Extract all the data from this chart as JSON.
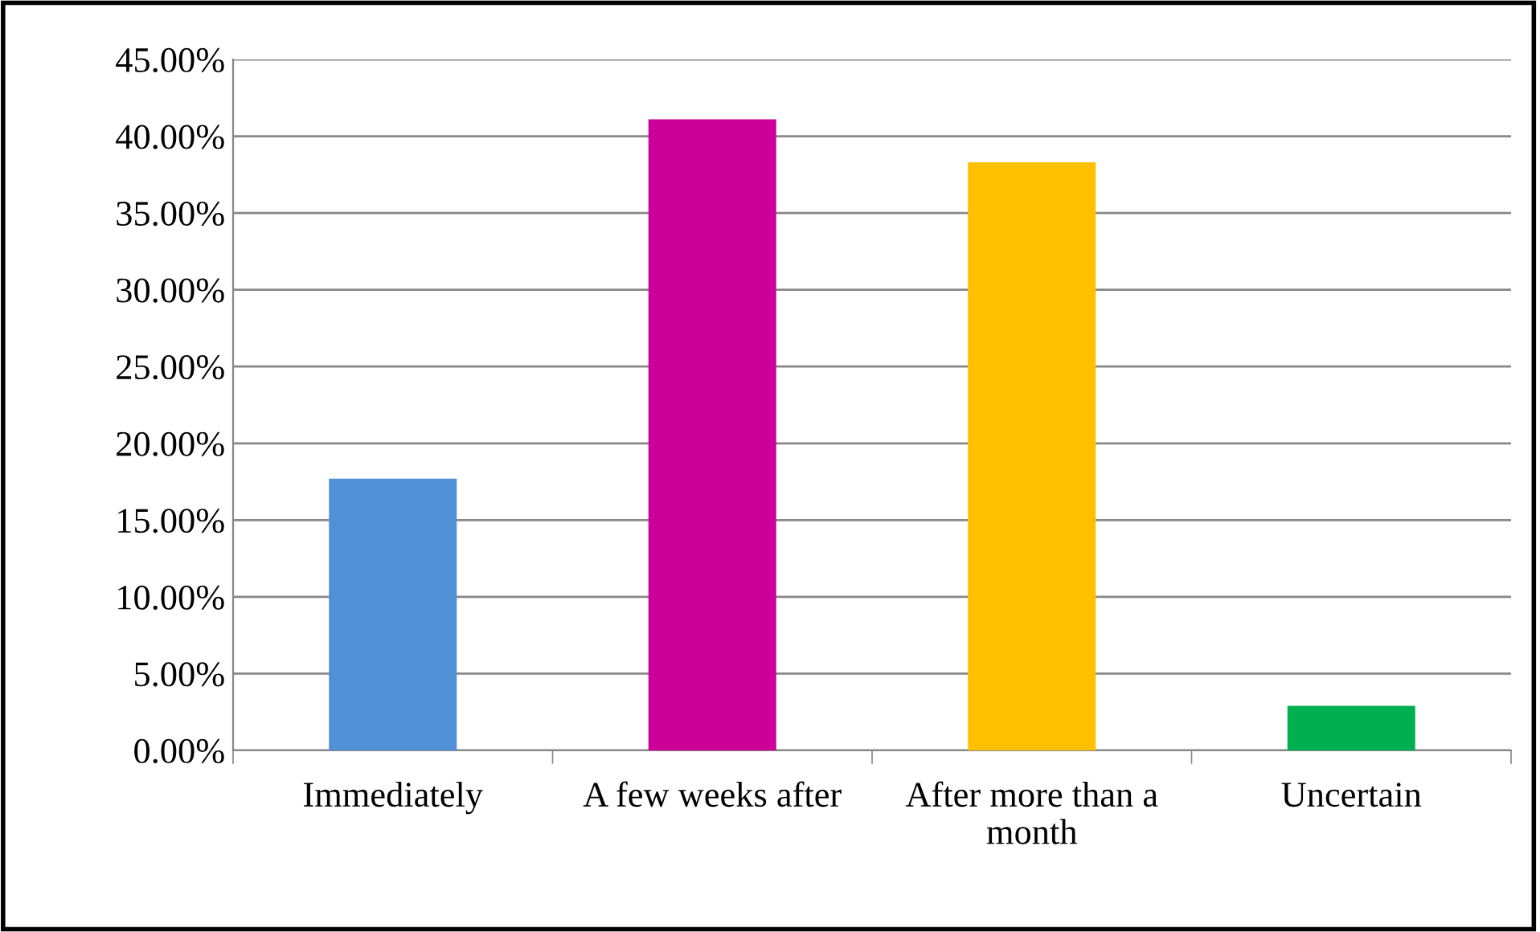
{
  "chart_data": {
    "type": "bar",
    "categories": [
      "Immediately",
      "A few weeks after",
      "After more than a\nmonth",
      "Uncertain"
    ],
    "values": [
      17.7,
      41.1,
      38.3,
      2.9
    ],
    "colors": [
      "#4f90d6",
      "#cc0099",
      "#ffc000",
      "#00b050"
    ],
    "ylim": [
      0,
      45
    ],
    "yticks": [
      {
        "value": 0,
        "label": "0.00%"
      },
      {
        "value": 5,
        "label": "5.00%"
      },
      {
        "value": 10,
        "label": "10.00%"
      },
      {
        "value": 15,
        "label": "15.00%"
      },
      {
        "value": 20,
        "label": "20.00%"
      },
      {
        "value": 25,
        "label": "25.00%"
      },
      {
        "value": 30,
        "label": "30.00%"
      },
      {
        "value": 35,
        "label": "35.00%"
      },
      {
        "value": 40,
        "label": "40.00%"
      },
      {
        "value": 45,
        "label": "45.00%"
      }
    ],
    "grid": "y",
    "legend": false
  }
}
